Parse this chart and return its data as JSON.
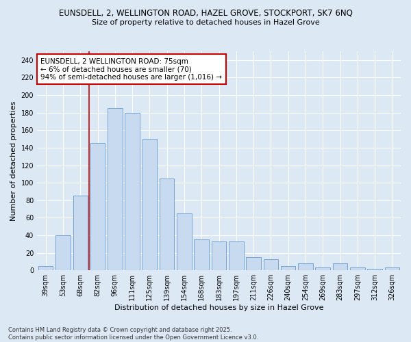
{
  "title_line1": "EUNSDELL, 2, WELLINGTON ROAD, HAZEL GROVE, STOCKPORT, SK7 6NQ",
  "title_line2": "Size of property relative to detached houses in Hazel Grove",
  "xlabel": "Distribution of detached houses by size in Hazel Grove",
  "ylabel": "Number of detached properties",
  "categories": [
    "39sqm",
    "53sqm",
    "68sqm",
    "82sqm",
    "96sqm",
    "111sqm",
    "125sqm",
    "139sqm",
    "154sqm",
    "168sqm",
    "183sqm",
    "197sqm",
    "211sqm",
    "226sqm",
    "240sqm",
    "254sqm",
    "269sqm",
    "283sqm",
    "297sqm",
    "312sqm",
    "326sqm"
  ],
  "values": [
    5,
    40,
    85,
    145,
    185,
    180,
    150,
    105,
    65,
    35,
    33,
    33,
    15,
    13,
    5,
    8,
    3,
    8,
    3,
    2,
    3
  ],
  "bar_color": "#c8daf0",
  "bar_edge_color": "#6699cc",
  "vline_x_index": 2.5,
  "vline_color": "#cc0000",
  "annotation_text": "EUNSDELL, 2 WELLINGTON ROAD: 75sqm\n← 6% of detached houses are smaller (70)\n94% of semi-detached houses are larger (1,016) →",
  "annotation_box_color": "#ffffff",
  "annotation_box_edge": "#cc0000",
  "ylim": [
    0,
    250
  ],
  "yticks": [
    0,
    20,
    40,
    60,
    80,
    100,
    120,
    140,
    160,
    180,
    200,
    220,
    240
  ],
  "background_color": "#dce9f5",
  "plot_bg_color": "#dce9f5",
  "footer_text": "Contains HM Land Registry data © Crown copyright and database right 2025.\nContains public sector information licensed under the Open Government Licence v3.0.",
  "title_fontsize": 8.5,
  "subtitle_fontsize": 8.0,
  "axis_label_fontsize": 8,
  "tick_fontsize": 7,
  "annotation_fontsize": 7.5,
  "footer_fontsize": 6
}
